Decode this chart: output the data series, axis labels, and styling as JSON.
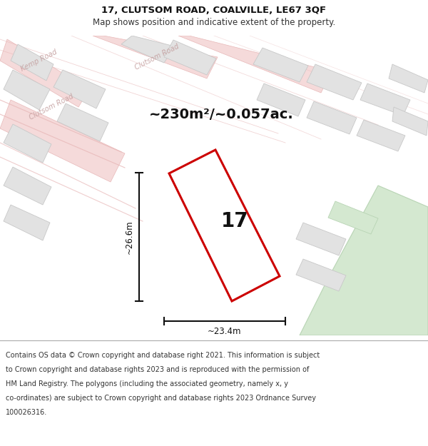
{
  "title_line1": "17, CLUTSOM ROAD, COALVILLE, LE67 3QF",
  "title_line2": "Map shows position and indicative extent of the property.",
  "area_text": "~230m²/~0.057ac.",
  "number_label": "17",
  "dim_width": "~23.4m",
  "dim_height": "~26.6m",
  "footer_lines": [
    "Contains OS data © Crown copyright and database right 2021. This information is subject",
    "to Crown copyright and database rights 2023 and is reproduced with the permission of",
    "HM Land Registry. The polygons (including the associated geometry, namely x, y",
    "co-ordinates) are subject to Crown copyright and database rights 2023 Ordnance Survey",
    "100026316."
  ],
  "bg_map": "#f7f0ee",
  "bg_title": "#ffffff",
  "bg_footer": "#ffffff",
  "plot_color": "#e2e2e2",
  "plot_edge": "#c8c8c8",
  "road_fill": "#f5dada",
  "road_edge": "#e8b8b8",
  "red_outline": "#cc0000",
  "green_area": "#d4e8d0",
  "green_edge": "#b8d4b4",
  "road_label_color": "#c4a0a0",
  "dim_color": "#111111",
  "area_color": "#111111",
  "number_color": "#111111",
  "title_color": "#111111",
  "subtitle_color": "#333333",
  "footer_color": "#333333"
}
